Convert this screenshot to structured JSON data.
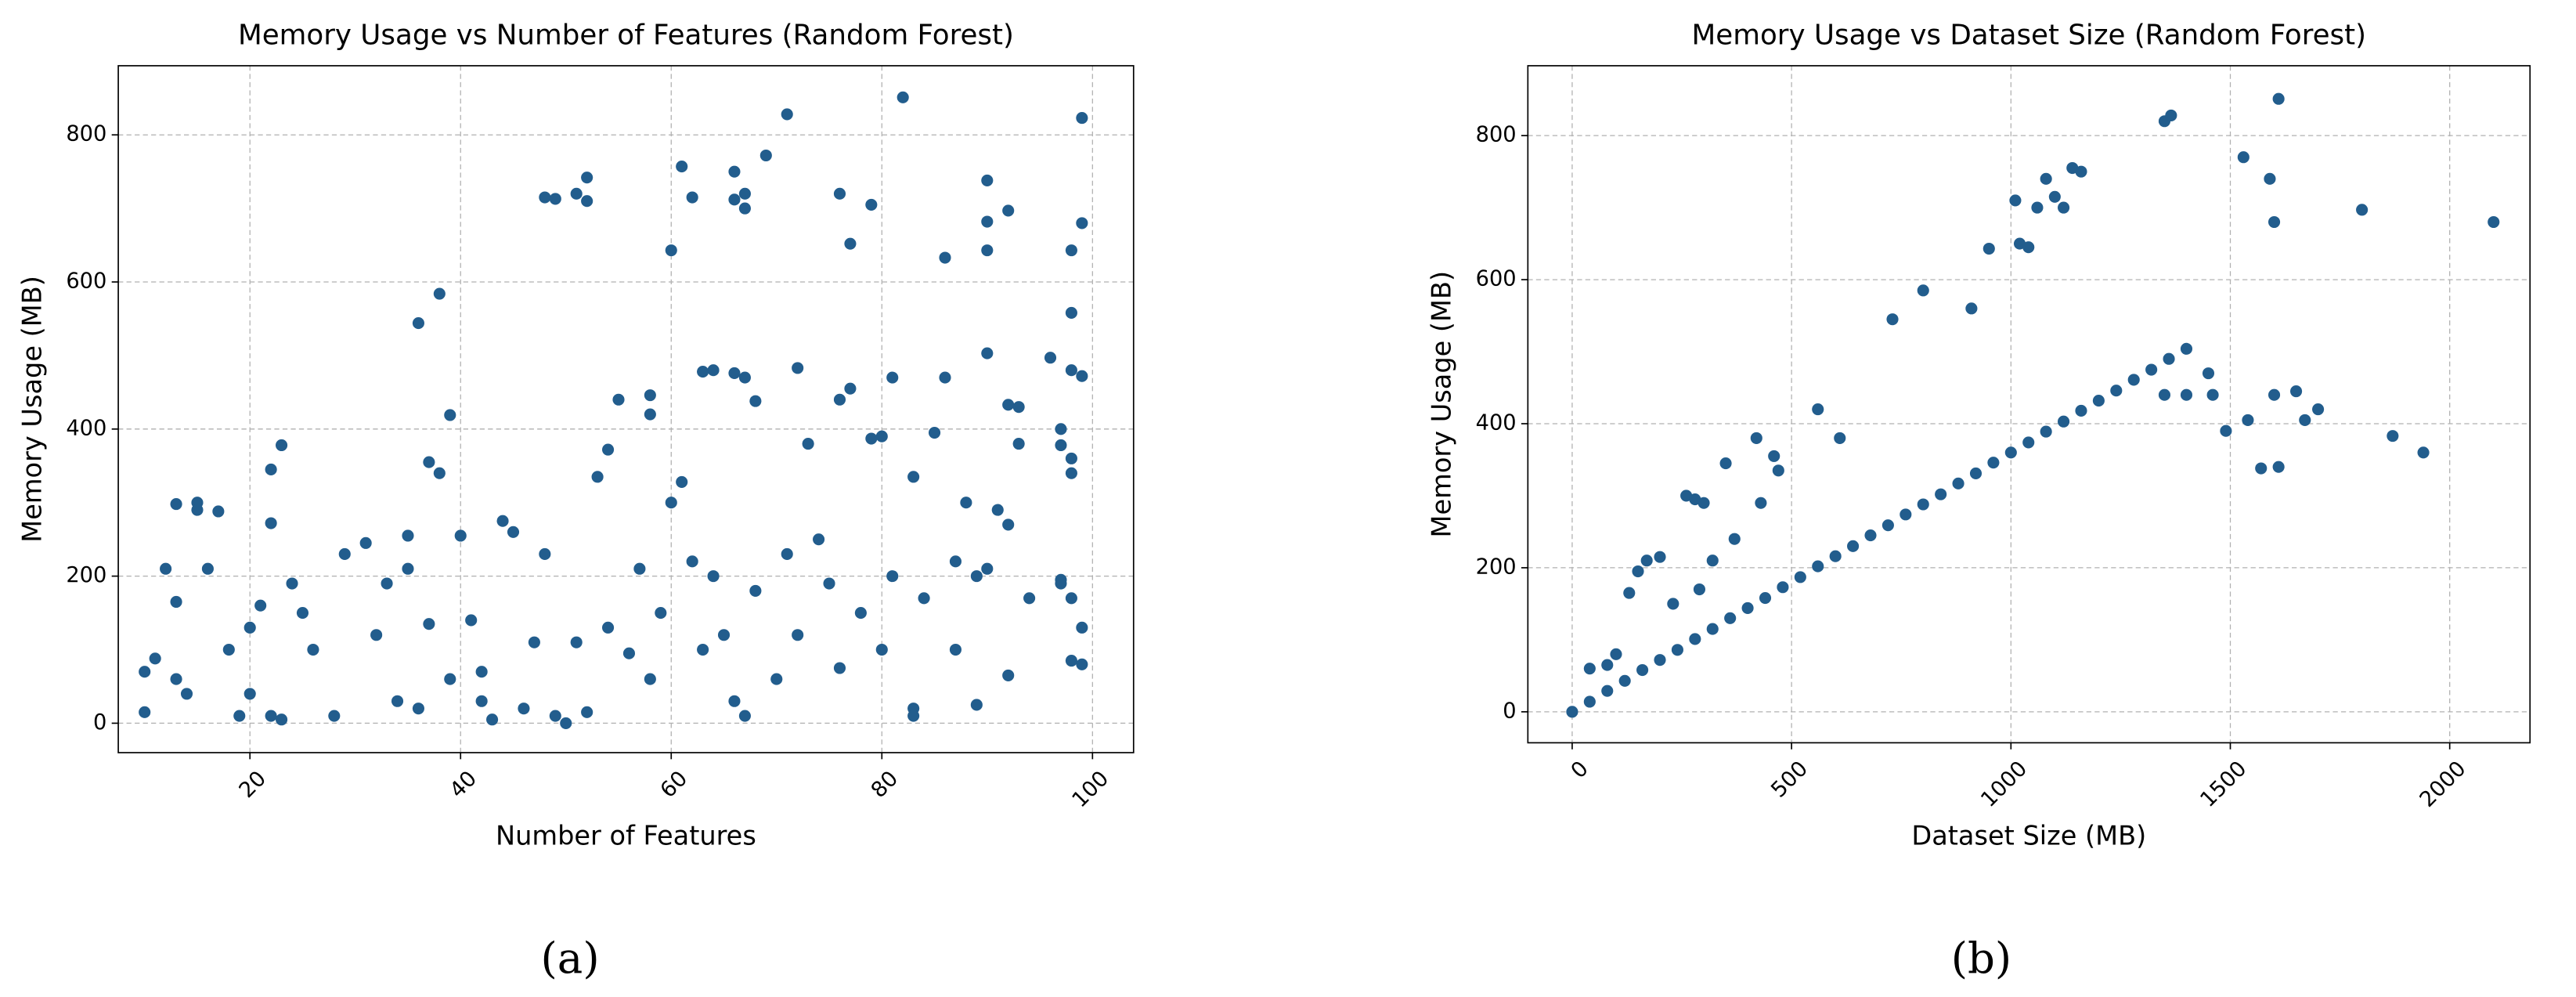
{
  "chart_data": [
    {
      "type": "scatter",
      "title": "Memory Usage vs Number of Features (Random Forest)",
      "x_label": "Number of Features",
      "y_label": "Memory Usage (MB)",
      "color": "#225d8d",
      "grid": true,
      "xlim": [
        7.5,
        103.9
      ],
      "ylim": [
        -40,
        894
      ],
      "xticks": [
        20,
        40,
        60,
        80,
        100
      ],
      "yticks": [
        0,
        200,
        400,
        600,
        800
      ],
      "x": [
        48,
        49,
        51,
        52,
        52,
        60,
        61,
        62,
        66,
        66,
        67,
        67,
        69,
        71,
        76,
        77,
        79,
        82,
        86,
        90,
        90,
        90,
        92,
        98,
        99,
        99,
        36,
        38,
        98,
        23,
        22,
        22,
        35,
        37,
        38,
        39,
        54,
        55,
        58,
        58,
        61,
        63,
        64,
        66,
        67,
        68,
        72,
        73,
        77,
        76,
        79,
        80,
        81,
        83,
        85,
        86,
        90,
        92,
        93,
        93,
        96,
        97,
        97,
        98,
        98,
        98,
        99,
        87,
        88,
        89,
        90,
        91,
        92,
        97,
        98,
        98,
        99,
        99,
        10,
        10,
        11,
        12,
        13,
        13,
        13,
        14,
        15,
        15,
        16,
        17,
        18,
        19,
        20,
        20,
        21,
        22,
        23,
        24,
        25,
        26,
        28,
        29,
        31,
        32,
        33,
        34,
        35,
        36,
        37,
        39,
        40,
        41,
        42,
        42,
        43,
        44,
        45,
        46,
        47,
        48,
        49,
        50,
        51,
        52,
        53,
        54,
        56,
        57,
        58,
        59,
        60,
        62,
        63,
        64,
        65,
        66,
        67,
        68,
        70,
        71,
        72,
        74,
        75,
        76,
        78,
        80,
        81,
        83,
        83,
        84,
        87,
        89,
        92,
        94,
        97
      ],
      "values": [
        715,
        713,
        720,
        742,
        710,
        643,
        757,
        715,
        750,
        712,
        720,
        700,
        772,
        828,
        720,
        652,
        705,
        851,
        633,
        738,
        682,
        643,
        697,
        643,
        823,
        680,
        544,
        584,
        558,
        378,
        345,
        272,
        255,
        355,
        340,
        419,
        372,
        440,
        446,
        420,
        328,
        478,
        480,
        476,
        470,
        438,
        483,
        380,
        455,
        440,
        387,
        390,
        470,
        335,
        395,
        470,
        503,
        433,
        430,
        380,
        497,
        400,
        378,
        360,
        340,
        480,
        472,
        220,
        300,
        200,
        210,
        290,
        270,
        190,
        170,
        85,
        80,
        130,
        70,
        15,
        88,
        210,
        298,
        165,
        60,
        40,
        300,
        290,
        210,
        288,
        100,
        10,
        40,
        130,
        160,
        10,
        5,
        190,
        150,
        100,
        10,
        230,
        245,
        120,
        190,
        30,
        210,
        20,
        135,
        60,
        255,
        140,
        30,
        70,
        5,
        275,
        260,
        20,
        110,
        230,
        10,
        0,
        110,
        15,
        335,
        130,
        95,
        210,
        60,
        150,
        300,
        220,
        100,
        200,
        120,
        30,
        10,
        180,
        60,
        230,
        120,
        250,
        190,
        75,
        150,
        100,
        200,
        20,
        10,
        170,
        100,
        25,
        65,
        170,
        195
      ]
    },
    {
      "type": "scatter",
      "title": "Memory Usage vs Dataset Size (Random Forest)",
      "x_label": "Dataset Size (MB)",
      "y_label": "Memory Usage (MB)",
      "color": "#225d8d",
      "grid": true,
      "xlim": [
        -101,
        2183
      ],
      "ylim": [
        -43,
        897
      ],
      "xticks": [
        0,
        500,
        1000,
        1500,
        2000
      ],
      "yticks": [
        0,
        200,
        400,
        600,
        800
      ],
      "x": [
        0,
        40,
        80,
        120,
        160,
        200,
        240,
        280,
        320,
        360,
        400,
        440,
        480,
        520,
        560,
        600,
        640,
        680,
        720,
        760,
        800,
        840,
        880,
        920,
        960,
        1000,
        1040,
        1080,
        1120,
        1160,
        1200,
        1240,
        1280,
        1320,
        1360,
        1400,
        40,
        80,
        100,
        130,
        150,
        170,
        200,
        230,
        260,
        280,
        300,
        290,
        320,
        350,
        370,
        420,
        430,
        460,
        470,
        560,
        610,
        730,
        800,
        910,
        950,
        1010,
        1020,
        1040,
        1060,
        1080,
        1100,
        1120,
        1140,
        1160,
        1350,
        1365,
        1530,
        1590,
        1610,
        1600,
        1800,
        2100,
        1350,
        1400,
        1450,
        1460,
        1490,
        1540,
        1570,
        1600,
        1610,
        1650,
        1670,
        1700,
        1870,
        1940
      ],
      "values": [
        0,
        14,
        29,
        43,
        58,
        72,
        86,
        101,
        115,
        130,
        144,
        158,
        173,
        187,
        202,
        216,
        230,
        245,
        259,
        274,
        288,
        302,
        317,
        331,
        346,
        360,
        374,
        389,
        403,
        418,
        432,
        446,
        461,
        475,
        490,
        504,
        60,
        65,
        80,
        165,
        195,
        210,
        215,
        150,
        300,
        295,
        290,
        170,
        210,
        345,
        240,
        380,
        290,
        355,
        335,
        420,
        380,
        545,
        585,
        560,
        643,
        710,
        650,
        645,
        700,
        740,
        715,
        700,
        755,
        750,
        820,
        828,
        770,
        740,
        851,
        680,
        697,
        680,
        440,
        440,
        470,
        440,
        390,
        405,
        338,
        440,
        340,
        445,
        405,
        420,
        383,
        360
      ]
    }
  ],
  "captions": [
    "(a)",
    "(b)"
  ]
}
